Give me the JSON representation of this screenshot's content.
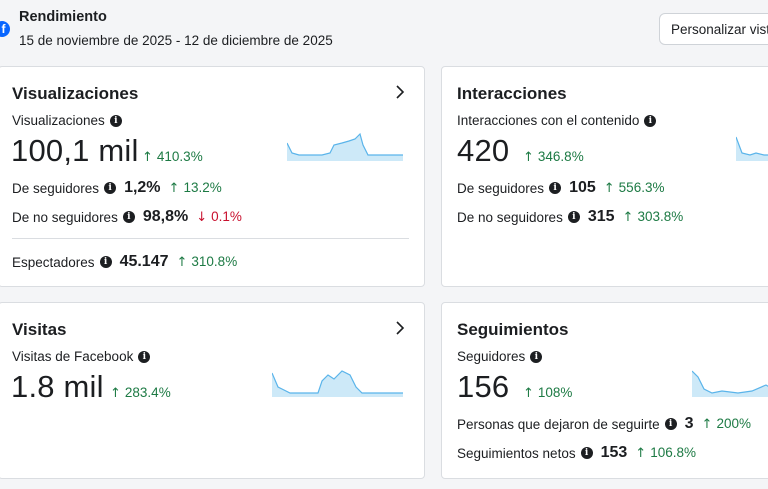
{
  "header": {
    "title": "Rendimiento",
    "date_range": "15 de noviembre de 2025 - 12 de diciembre de 2025",
    "customize_label": "Personalizar vista"
  },
  "colors": {
    "accent": "#0866ff",
    "positive": "#1d7a44",
    "negative": "#c8102e",
    "spark": "#cde9f8"
  },
  "cards": {
    "views": {
      "title": "Visualizaciones",
      "metric_label": "Visualizaciones",
      "metric_value": "100,1 mil",
      "metric_delta": "410.3%",
      "followers_label": "De seguidores",
      "followers_value": "1,2%",
      "followers_delta": "13.2%",
      "nonfollowers_label": "De no seguidores",
      "nonfollowers_value": "98,8%",
      "nonfollowers_delta": "0.1%",
      "viewers_label": "Espectadores",
      "viewers_value": "45.147",
      "viewers_delta": "310.8%"
    },
    "interactions": {
      "title": "Interacciones",
      "metric_label": "Interacciones con el contenido",
      "metric_value": "420",
      "metric_delta": "346.8%",
      "followers_label": "De seguidores",
      "followers_value": "105",
      "followers_delta": "556.3%",
      "nonfollowers_label": "De no seguidores",
      "nonfollowers_value": "315",
      "nonfollowers_delta": "303.8%"
    },
    "visits": {
      "title": "Visitas",
      "metric_label": "Visitas de Facebook",
      "metric_value": "1.8 mil",
      "metric_delta": "283.4%"
    },
    "follows": {
      "title": "Seguimientos",
      "metric_label": "Seguidores",
      "metric_value": "156",
      "metric_delta": "108%",
      "unfollow_label": "Personas que dejaron de seguirte",
      "unfollow_value": "3",
      "unfollow_delta": "200%",
      "net_label": "Seguimientos netos",
      "net_value": "153",
      "net_delta": "106.8%"
    }
  }
}
